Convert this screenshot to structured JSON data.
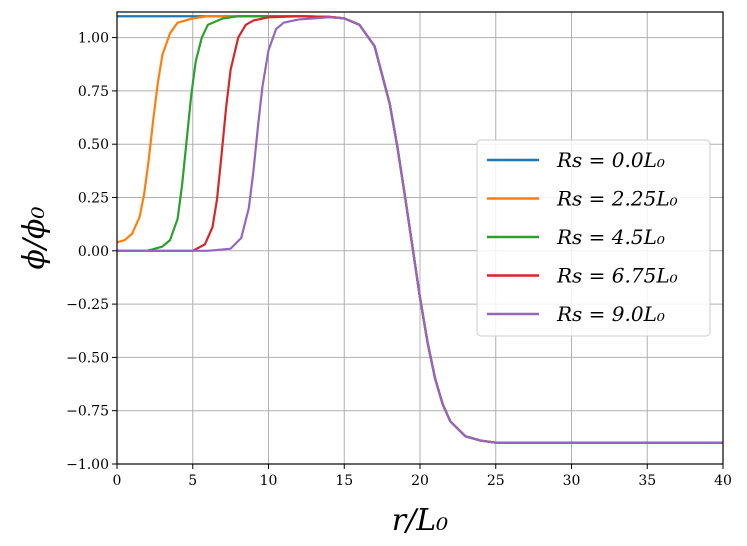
{
  "chart_data": {
    "type": "line",
    "title": "",
    "xlabel": "r/L₀",
    "ylabel": "ϕ/ϕ₀",
    "xlim": [
      0,
      40
    ],
    "ylim": [
      -1.0,
      1.12
    ],
    "xticks": [
      0,
      5,
      10,
      15,
      20,
      25,
      30,
      35,
      40
    ],
    "yticks": [
      -1.0,
      -0.75,
      -0.5,
      -0.25,
      0.0,
      0.25,
      0.5,
      0.75,
      1.0
    ],
    "xtick_labels": [
      "0",
      "5",
      "10",
      "15",
      "20",
      "25",
      "30",
      "35",
      "40"
    ],
    "ytick_labels": [
      "−1.00",
      "−0.75",
      "−0.50",
      "−0.25",
      "0.00",
      "0.25",
      "0.50",
      "0.75",
      "1.00"
    ],
    "grid": true,
    "legend_position": "center-right",
    "series": [
      {
        "name": "Rs = 0.0L₀",
        "color": "#1f77b4",
        "x": [
          0,
          2,
          4,
          6,
          8,
          10,
          12,
          14,
          15,
          16,
          17,
          18,
          18.5,
          19,
          19.5,
          20,
          20.5,
          21,
          21.5,
          22,
          23,
          24,
          25,
          26,
          28,
          30,
          35,
          40
        ],
        "y": [
          1.1,
          1.1,
          1.1,
          1.1,
          1.1,
          1.1,
          1.1,
          1.097,
          1.09,
          1.06,
          0.96,
          0.69,
          0.49,
          0.26,
          0.02,
          -0.22,
          -0.43,
          -0.6,
          -0.72,
          -0.8,
          -0.87,
          -0.89,
          -0.9,
          -0.9,
          -0.9,
          -0.9,
          -0.9,
          -0.9
        ]
      },
      {
        "name": "Rs = 2.25L₀",
        "color": "#ff7f0e",
        "x": [
          0,
          0.5,
          1,
          1.5,
          1.8,
          2.1,
          2.4,
          2.7,
          3,
          3.5,
          4,
          5,
          6,
          8,
          10,
          12,
          14,
          15,
          16,
          17,
          18,
          18.5,
          19,
          19.5,
          20,
          20.5,
          21,
          21.5,
          22,
          23,
          24,
          25,
          26,
          28,
          30,
          35,
          40
        ],
        "y": [
          0.04,
          0.05,
          0.08,
          0.16,
          0.27,
          0.43,
          0.62,
          0.79,
          0.92,
          1.02,
          1.07,
          1.09,
          1.1,
          1.1,
          1.1,
          1.1,
          1.097,
          1.09,
          1.06,
          0.96,
          0.69,
          0.49,
          0.26,
          0.02,
          -0.22,
          -0.43,
          -0.6,
          -0.72,
          -0.8,
          -0.87,
          -0.89,
          -0.9,
          -0.9,
          -0.9,
          -0.9,
          -0.9,
          -0.9
        ]
      },
      {
        "name": "Rs = 4.5L₀",
        "color": "#2ca02c",
        "x": [
          0,
          2,
          3,
          3.5,
          4,
          4.3,
          4.6,
          4.9,
          5.2,
          5.6,
          6,
          7,
          8,
          10,
          12,
          14,
          15,
          16,
          17,
          18,
          18.5,
          19,
          19.5,
          20,
          20.5,
          21,
          21.5,
          22,
          23,
          24,
          25,
          26,
          28,
          30,
          35,
          40
        ],
        "y": [
          0,
          0.0,
          0.02,
          0.05,
          0.15,
          0.31,
          0.52,
          0.73,
          0.89,
          1.0,
          1.06,
          1.09,
          1.1,
          1.1,
          1.1,
          1.097,
          1.09,
          1.06,
          0.96,
          0.69,
          0.49,
          0.26,
          0.02,
          -0.22,
          -0.43,
          -0.6,
          -0.72,
          -0.8,
          -0.87,
          -0.89,
          -0.9,
          -0.9,
          -0.9,
          -0.9,
          -0.9,
          -0.9
        ]
      },
      {
        "name": "Rs = 6.75L₀",
        "color": "#d62728",
        "x": [
          0,
          2,
          4,
          5,
          5.8,
          6.3,
          6.6,
          6.9,
          7.2,
          7.5,
          8,
          8.5,
          9,
          10,
          12,
          14,
          15,
          16,
          17,
          18,
          18.5,
          19,
          19.5,
          20,
          20.5,
          21,
          21.5,
          22,
          23,
          24,
          25,
          26,
          28,
          30,
          35,
          40
        ],
        "y": [
          0,
          0,
          0,
          0.0,
          0.03,
          0.11,
          0.24,
          0.45,
          0.67,
          0.85,
          1.0,
          1.06,
          1.08,
          1.095,
          1.1,
          1.097,
          1.09,
          1.06,
          0.96,
          0.69,
          0.49,
          0.26,
          0.02,
          -0.22,
          -0.43,
          -0.6,
          -0.72,
          -0.8,
          -0.87,
          -0.89,
          -0.9,
          -0.9,
          -0.9,
          -0.9,
          -0.9,
          -0.9
        ]
      },
      {
        "name": "Rs = 9.0L₀",
        "color": "#9467bd",
        "x": [
          0,
          2,
          4,
          6,
          7.5,
          8.2,
          8.7,
          9.0,
          9.3,
          9.6,
          10,
          10.5,
          11,
          12,
          13,
          14,
          15,
          16,
          17,
          18,
          18.5,
          19,
          19.5,
          20,
          20.5,
          21,
          21.5,
          22,
          23,
          24,
          25,
          26,
          28,
          30,
          35,
          40
        ],
        "y": [
          0,
          0,
          0,
          0,
          0.01,
          0.06,
          0.2,
          0.37,
          0.58,
          0.77,
          0.94,
          1.04,
          1.07,
          1.085,
          1.09,
          1.095,
          1.09,
          1.06,
          0.96,
          0.69,
          0.49,
          0.26,
          0.02,
          -0.22,
          -0.43,
          -0.6,
          -0.72,
          -0.8,
          -0.87,
          -0.89,
          -0.9,
          -0.9,
          -0.9,
          -0.9,
          -0.9,
          -0.9
        ]
      }
    ]
  }
}
